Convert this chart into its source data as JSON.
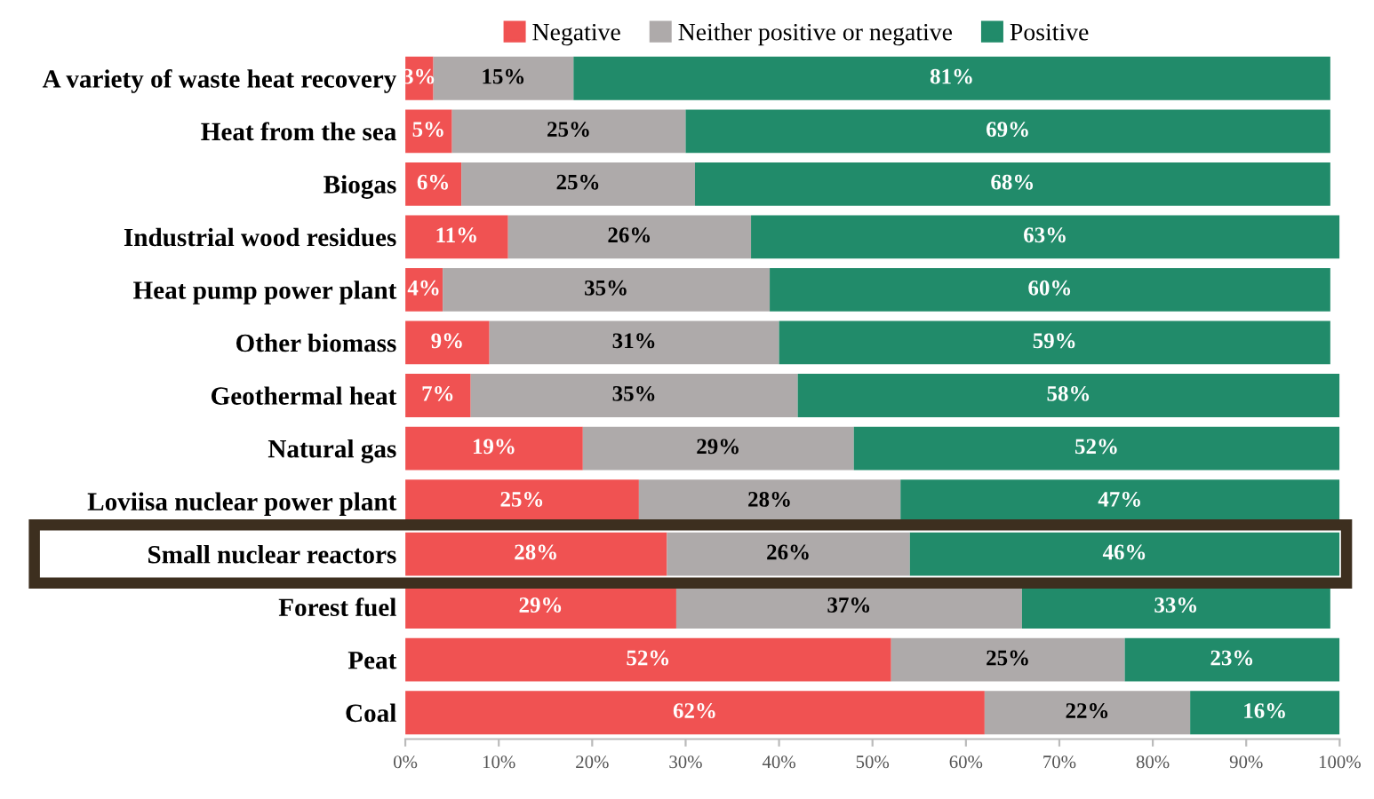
{
  "chart_data": {
    "type": "bar",
    "orientation": "horizontal",
    "stacked": true,
    "categories": [
      "A variety of waste heat recovery",
      "Heat from the sea",
      "Biogas",
      "Industrial wood residues",
      "Heat pump power plant",
      "Other biomass",
      "Geothermal heat",
      "Natural gas",
      "Loviisa nuclear power plant",
      "Small nuclear reactors",
      "Forest fuel",
      "Peat",
      "Coal"
    ],
    "series": [
      {
        "name": "Negative",
        "color": "#f05252",
        "values": [
          3,
          5,
          6,
          11,
          4,
          9,
          7,
          19,
          25,
          28,
          29,
          52,
          62
        ],
        "value_labels": [
          "3%",
          "5%",
          "6%",
          "11%",
          "4%",
          "9%",
          "7%",
          "19%",
          "25%",
          "28%",
          "29%",
          "52%",
          "62%"
        ]
      },
      {
        "name": "Neither positive or negative",
        "color": "#aeaaaa",
        "values": [
          15,
          25,
          25,
          26,
          35,
          31,
          35,
          29,
          28,
          26,
          37,
          25,
          22
        ],
        "value_labels": [
          "15%",
          "25%",
          "25%",
          "26%",
          "35%",
          "31%",
          "35%",
          "29%",
          "28%",
          "26%",
          "37%",
          "25%",
          "22%"
        ]
      },
      {
        "name": "Positive",
        "color": "#218b6a",
        "values": [
          81,
          69,
          68,
          63,
          60,
          59,
          58,
          52,
          47,
          46,
          33,
          23,
          16
        ],
        "value_labels": [
          "81%",
          "69%",
          "68%",
          "63%",
          "60%",
          "59%",
          "58%",
          "52%",
          "47%",
          "46%",
          "33%",
          "23%",
          "16%"
        ]
      }
    ],
    "xlim": [
      0,
      100
    ],
    "xticks": [
      {
        "value": 0,
        "label": "0%"
      },
      {
        "value": 10,
        "label": "10%"
      },
      {
        "value": 20,
        "label": "20%"
      },
      {
        "value": 30,
        "label": "30%"
      },
      {
        "value": 40,
        "label": "40%"
      },
      {
        "value": 50,
        "label": "50%"
      },
      {
        "value": 60,
        "label": "60%"
      },
      {
        "value": 70,
        "label": "70%"
      },
      {
        "value": 80,
        "label": "80%"
      },
      {
        "value": 90,
        "label": "90%"
      },
      {
        "value": 100,
        "label": "100%"
      }
    ],
    "legend": "top",
    "grid": false
  }
}
